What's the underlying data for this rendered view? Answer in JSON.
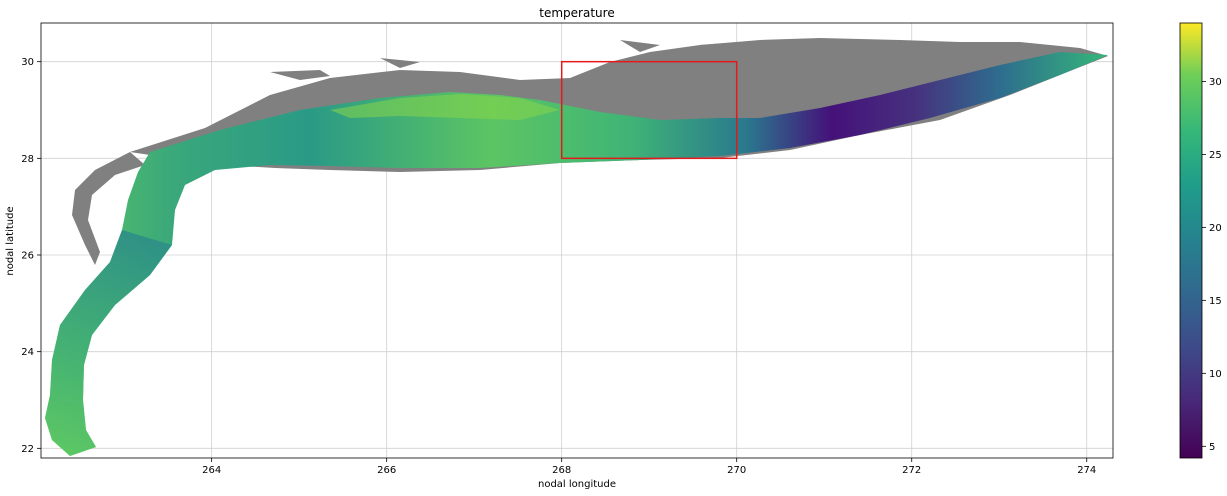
{
  "chart_data": {
    "type": "heatmap",
    "title": "temperature",
    "xlabel": "nodal longitude",
    "ylabel": "nodal latitude",
    "xlim": [
      262.05,
      274.3
    ],
    "ylim": [
      21.8,
      30.8
    ],
    "xticks": [
      264,
      266,
      268,
      270,
      272,
      274
    ],
    "yticks": [
      22,
      24,
      26,
      28,
      30
    ],
    "grid": true,
    "colormap": "viridis",
    "land_color": "#808080",
    "colorbar": {
      "range": [
        4.2,
        34
      ],
      "ticks": [
        5,
        10,
        15,
        20,
        25,
        30
      ]
    },
    "highlight_box": {
      "lon": [
        268,
        270
      ],
      "lat": [
        28,
        30
      ],
      "color": "#e31a1c"
    },
    "temperature_profile": [
      {
        "lon": 262.5,
        "lat": 22.5,
        "value": 24
      },
      {
        "lon": 262.6,
        "lat": 24.0,
        "value": 23
      },
      {
        "lon": 263.3,
        "lat": 25.5,
        "value": 22
      },
      {
        "lon": 263.5,
        "lat": 27.0,
        "value": 20
      },
      {
        "lon": 264.5,
        "lat": 28.2,
        "value": 22
      },
      {
        "lon": 266.0,
        "lat": 28.7,
        "value": 25
      },
      {
        "lon": 267.0,
        "lat": 28.9,
        "value": 27
      },
      {
        "lon": 268.0,
        "lat": 28.7,
        "value": 25
      },
      {
        "lon": 269.0,
        "lat": 28.5,
        "value": 22
      },
      {
        "lon": 270.0,
        "lat": 28.3,
        "value": 16
      },
      {
        "lon": 271.0,
        "lat": 28.5,
        "value": 6
      },
      {
        "lon": 272.0,
        "lat": 28.9,
        "value": 8
      },
      {
        "lon": 273.0,
        "lat": 29.5,
        "value": 15
      },
      {
        "lon": 274.0,
        "lat": 30.0,
        "value": 26
      }
    ]
  }
}
